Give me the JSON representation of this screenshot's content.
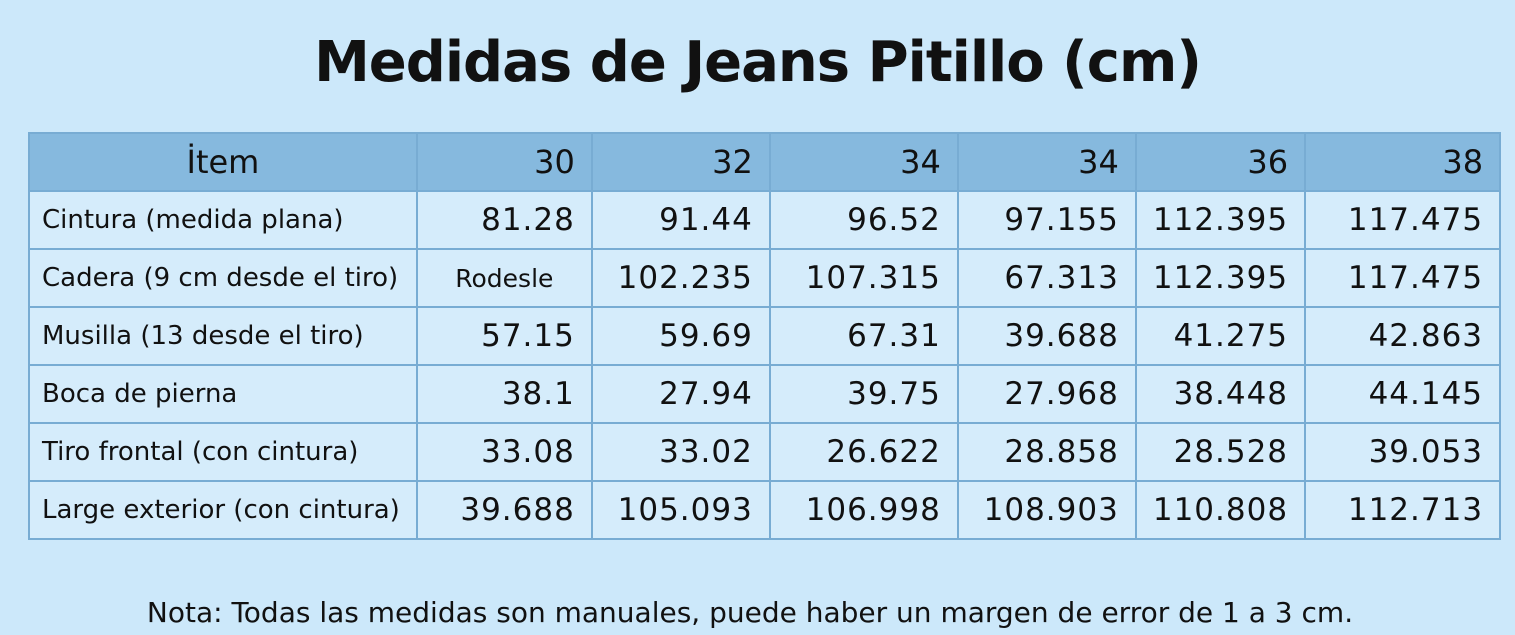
{
  "header": {
    "title": "Medidas de Jeans Pitillo (cm)"
  },
  "table": {
    "columns": [
      "İtem",
      "30",
      "32",
      "34",
      "34",
      "36",
      "38"
    ],
    "rows": [
      [
        "Cintura (medida plana)",
        "81.28",
        "91.44",
        "96.52",
        "97.155",
        "112.395",
        "117.475"
      ],
      [
        "Cadera (9 cm desde el tiro)",
        "Rodesle",
        "102.235",
        "107.315",
        "67.313",
        "112.395",
        "117.475"
      ],
      [
        "Musilla (13 desde el tiro)",
        "57.15",
        "59.69",
        "67.31",
        "39.688",
        "41.275",
        "42.863"
      ],
      [
        "Boca de pierna",
        "38.1",
        "27.94",
        "39.75",
        "27.968",
        "38.448",
        "44.145"
      ],
      [
        "Tiro frontal (con cintura)",
        "33.08",
        "33.02",
        "26.622",
        "28.858",
        "28.528",
        "39.053"
      ],
      [
        "Large exterior (con cintura)",
        "39.688",
        "105.093",
        "106.998",
        "108.903",
        "110.808",
        "112.713"
      ]
    ]
  },
  "footer": {
    "note": "Nota: Todas las medidas son manuales, puede haber un margen de error de 1 a 3 cm."
  }
}
